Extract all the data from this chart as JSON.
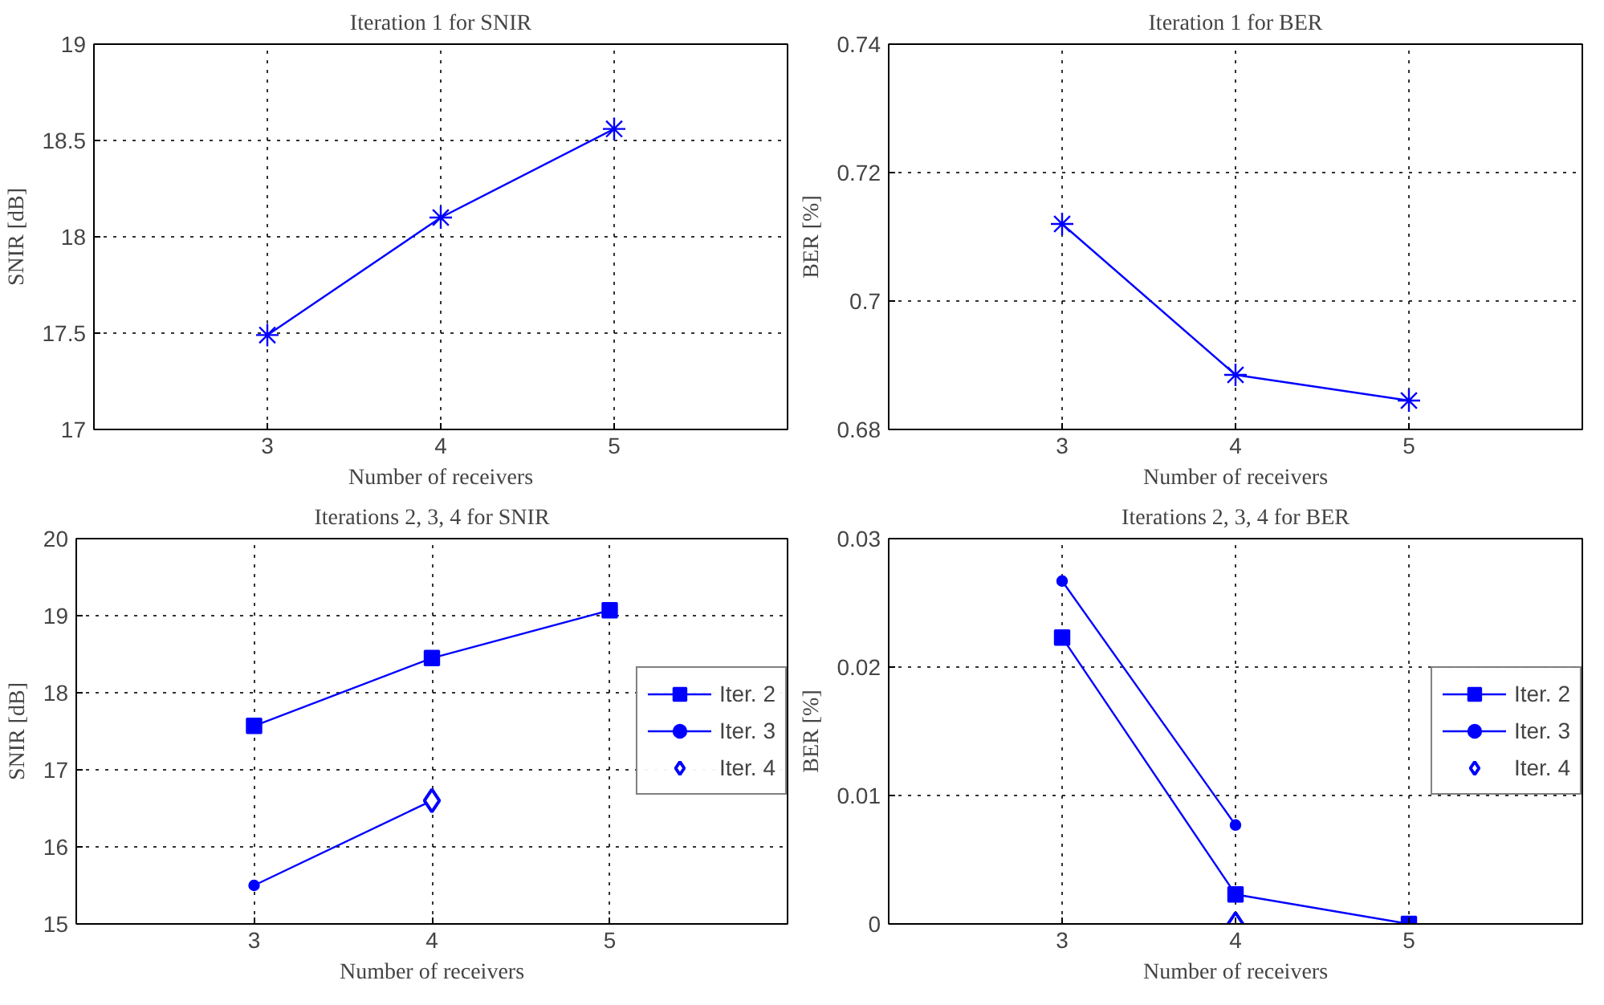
{
  "chart_data": [
    {
      "type": "line",
      "title": "Iteration 1 for SNIR",
      "xlabel": "Number of receivers",
      "ylabel": "SNIR [dB]",
      "x": [
        3,
        4,
        5
      ],
      "xlim": [
        2,
        6
      ],
      "xticks": [
        3,
        4,
        5
      ],
      "ylim": [
        17,
        19
      ],
      "yticks": [
        17,
        17.5,
        18,
        18.5,
        19
      ],
      "grid": true,
      "legend": false,
      "series": [
        {
          "color": "#0000ff",
          "marker": "cross",
          "values": [
            17.49,
            18.1,
            18.56
          ]
        }
      ]
    },
    {
      "type": "line",
      "title": "Iteration 1 for BER",
      "xlabel": "Number of receivers",
      "ylabel": "BER [%]",
      "x": [
        3,
        4,
        5
      ],
      "xlim": [
        2,
        6
      ],
      "xticks": [
        3,
        4,
        5
      ],
      "ylim": [
        0.68,
        0.74
      ],
      "yticks": [
        0.68,
        0.7,
        0.72,
        0.74
      ],
      "grid": true,
      "legend": false,
      "series": [
        {
          "color": "#0000ff",
          "marker": "cross",
          "values": [
            0.712,
            0.6885,
            0.6845
          ]
        }
      ]
    },
    {
      "type": "line",
      "title": "Iterations 2, 3, 4 for SNIR",
      "xlabel": "Number of receivers",
      "ylabel": "SNIR [dB]",
      "x": [
        3,
        4,
        5
      ],
      "xlim": [
        2,
        6
      ],
      "xticks": [
        3,
        4,
        5
      ],
      "ylim": [
        15,
        20
      ],
      "yticks": [
        15,
        16,
        17,
        18,
        19,
        20
      ],
      "grid": true,
      "legend": "right",
      "series": [
        {
          "name": "Iter. 2",
          "color": "#0000ff",
          "marker": "square",
          "values": [
            17.57,
            18.45,
            19.07
          ]
        },
        {
          "name": "Iter. 3",
          "color": "#0000ff",
          "marker": "circle",
          "values": [
            15.5,
            16.6,
            null
          ]
        },
        {
          "name": "Iter. 4",
          "type": "scatter",
          "color": "#0000ff",
          "marker": "diamond",
          "values": [
            null,
            16.6,
            null
          ]
        }
      ]
    },
    {
      "type": "line",
      "title": "Iterations 2, 3, 4 for BER",
      "xlabel": "Number of receivers",
      "ylabel": "BER [%]",
      "x": [
        3,
        4,
        5
      ],
      "xlim": [
        2,
        6
      ],
      "xticks": [
        3,
        4,
        5
      ],
      "ylim": [
        0,
        0.03
      ],
      "yticks": [
        0,
        0.01,
        0.02,
        0.03
      ],
      "grid": true,
      "legend": "right",
      "series": [
        {
          "name": "Iter. 2",
          "color": "#0000ff",
          "marker": "square",
          "values": [
            0.0223,
            0.0023,
            0.0
          ]
        },
        {
          "name": "Iter. 3",
          "color": "#0000ff",
          "marker": "circle",
          "values": [
            0.0267,
            0.0077,
            null
          ]
        },
        {
          "name": "Iter. 4",
          "type": "scatter",
          "color": "#0000ff",
          "marker": "diamond",
          "values": [
            null,
            0.0,
            null
          ]
        }
      ]
    }
  ]
}
